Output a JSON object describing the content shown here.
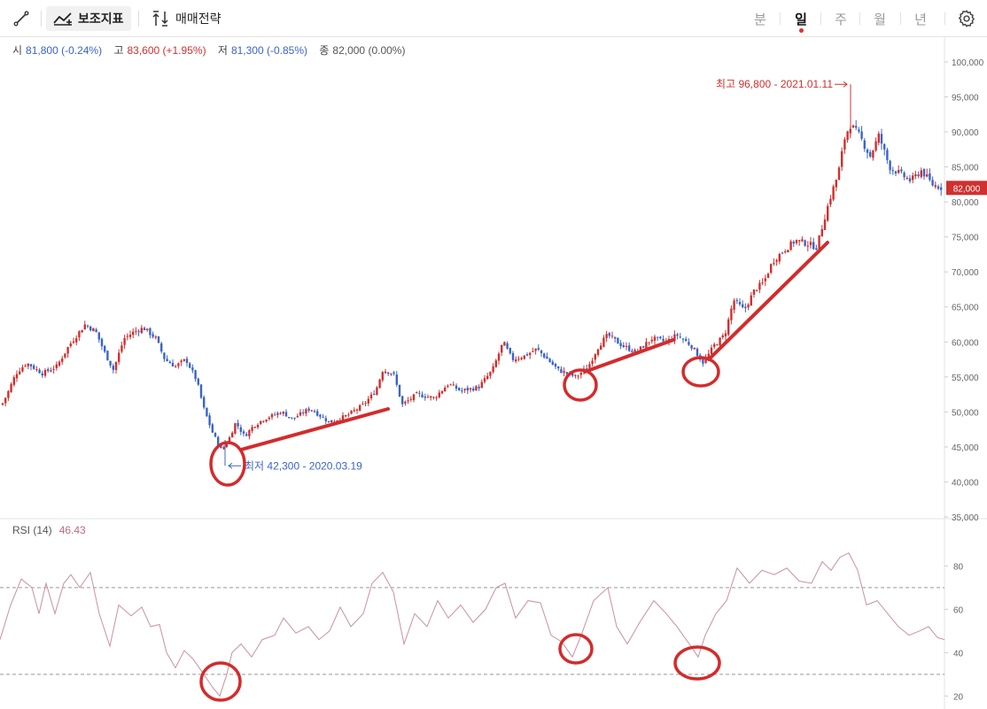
{
  "toolbar": {
    "draw_icon": "line-draw-icon",
    "indicator_label": "보조지표",
    "strategy_label": "매매전략",
    "periods": [
      "분",
      "일",
      "주",
      "월",
      "년"
    ],
    "active_period": "일",
    "settings_icon": "gear-icon"
  },
  "ohlc": {
    "open_label": "시",
    "open_value": "81,800 (-0.24%)",
    "high_label": "고",
    "high_value": "83,600 (+1.95%)",
    "low_label": "저",
    "low_value": "81,300 (-0.85%)",
    "close_label": "종",
    "close_value": "82,000 (0.00%)"
  },
  "rsi": {
    "label": "RSI (14)",
    "value": "46.43"
  },
  "colors": {
    "up": "#d0302f",
    "down": "#3a64c9",
    "rsi_line": "#c9909f",
    "annotation": "#d42b2b"
  },
  "chart_data": [
    {
      "type": "candlestick",
      "title": "",
      "ylim": [
        35000,
        101000
      ],
      "y_ticks": [
        "35,000",
        "40,000",
        "45,000",
        "50,000",
        "55,000",
        "60,000",
        "65,000",
        "70,000",
        "75,000",
        "80,000",
        "85,000",
        "90,000",
        "95,000",
        "100,000"
      ],
      "y_tick_values": [
        35000,
        40000,
        45000,
        50000,
        55000,
        60000,
        65000,
        70000,
        75000,
        80000,
        85000,
        90000,
        95000,
        100000
      ],
      "close_path": [
        [
          0,
          50500
        ],
        [
          8,
          52500
        ],
        [
          18,
          55500
        ],
        [
          30,
          57000
        ],
        [
          48,
          55500
        ],
        [
          64,
          56500
        ],
        [
          78,
          59500
        ],
        [
          96,
          62500
        ],
        [
          108,
          61500
        ],
        [
          118,
          58500
        ],
        [
          128,
          56000
        ],
        [
          140,
          60500
        ],
        [
          152,
          61500
        ],
        [
          162,
          62000
        ],
        [
          176,
          60500
        ],
        [
          186,
          57500
        ],
        [
          198,
          56500
        ],
        [
          210,
          57500
        ],
        [
          222,
          54500
        ],
        [
          230,
          50500
        ],
        [
          240,
          47000
        ],
        [
          250,
          44500
        ],
        [
          258,
          46000
        ],
        [
          266,
          48500
        ],
        [
          276,
          46500
        ],
        [
          286,
          48000
        ],
        [
          298,
          49000
        ],
        [
          318,
          50000
        ],
        [
          330,
          49000
        ],
        [
          350,
          50500
        ],
        [
          372,
          48500
        ],
        [
          392,
          49500
        ],
        [
          410,
          51000
        ],
        [
          424,
          53000
        ],
        [
          432,
          56000
        ],
        [
          444,
          55500
        ],
        [
          454,
          51000
        ],
        [
          470,
          52500
        ],
        [
          490,
          52000
        ],
        [
          506,
          54000
        ],
        [
          520,
          53000
        ],
        [
          540,
          53500
        ],
        [
          556,
          56000
        ],
        [
          568,
          60000
        ],
        [
          578,
          57500
        ],
        [
          592,
          58000
        ],
        [
          606,
          59000
        ],
        [
          618,
          57500
        ],
        [
          630,
          56000
        ],
        [
          650,
          55000
        ],
        [
          664,
          56500
        ],
        [
          676,
          59500
        ],
        [
          686,
          61000
        ],
        [
          702,
          59500
        ],
        [
          718,
          58500
        ],
        [
          736,
          60500
        ],
        [
          752,
          60000
        ],
        [
          764,
          61000
        ],
        [
          780,
          59500
        ],
        [
          794,
          57000
        ],
        [
          806,
          59500
        ],
        [
          818,
          61000
        ],
        [
          828,
          66000
        ],
        [
          840,
          64500
        ],
        [
          852,
          67500
        ],
        [
          862,
          68500
        ],
        [
          872,
          71500
        ],
        [
          884,
          73000
        ],
        [
          898,
          74500
        ],
        [
          912,
          74000
        ],
        [
          922,
          73500
        ],
        [
          930,
          77500
        ],
        [
          938,
          81000
        ],
        [
          946,
          84000
        ],
        [
          954,
          89500
        ],
        [
          960,
          91000
        ],
        [
          970,
          89500
        ],
        [
          982,
          86500
        ],
        [
          992,
          89500
        ],
        [
          1004,
          85000
        ],
        [
          1016,
          84000
        ],
        [
          1028,
          83000
        ],
        [
          1040,
          84500
        ],
        [
          1052,
          82500
        ],
        [
          1064,
          82000
        ]
      ],
      "high_annotation": {
        "text": "최고 96,800 - 2021.01.11",
        "x": 960,
        "value": 96800
      },
      "low_annotation": {
        "text": "최저 42,300 - 2020.03.19",
        "x": 254,
        "value": 42300
      },
      "last_price_label": "82,000",
      "last_price_value": 82000
    },
    {
      "type": "line",
      "title": "RSI (14)",
      "ylim": [
        14,
        92
      ],
      "y_ticks": [
        "20",
        "40",
        "60",
        "80"
      ],
      "y_tick_values": [
        20,
        40,
        60,
        80
      ],
      "reference_lines": [
        70,
        30
      ],
      "series": [
        {
          "values": [
            [
              0,
              46
            ],
            [
              12,
              62
            ],
            [
              24,
              74
            ],
            [
              36,
              70
            ],
            [
              44,
              58
            ],
            [
              52,
              72
            ],
            [
              62,
              58
            ],
            [
              72,
              72
            ],
            [
              80,
              76
            ],
            [
              90,
              70
            ],
            [
              102,
              77
            ],
            [
              112,
              58
            ],
            [
              124,
              43
            ],
            [
              134,
              62
            ],
            [
              148,
              57
            ],
            [
              160,
              61
            ],
            [
              170,
              52
            ],
            [
              180,
              53
            ],
            [
              188,
              40
            ],
            [
              198,
              33
            ],
            [
              208,
              41
            ],
            [
              218,
              37
            ],
            [
              230,
              30
            ],
            [
              240,
              24
            ],
            [
              248,
              20
            ],
            [
              256,
              30
            ],
            [
              262,
              40
            ],
            [
              272,
              44
            ],
            [
              284,
              38
            ],
            [
              296,
              46
            ],
            [
              310,
              48
            ],
            [
              320,
              56
            ],
            [
              334,
              49
            ],
            [
              348,
              52
            ],
            [
              360,
              46
            ],
            [
              372,
              50
            ],
            [
              384,
              61
            ],
            [
              396,
              52
            ],
            [
              410,
              58
            ],
            [
              420,
              72
            ],
            [
              432,
              77
            ],
            [
              444,
              68
            ],
            [
              456,
              44
            ],
            [
              468,
              58
            ],
            [
              482,
              52
            ],
            [
              494,
              64
            ],
            [
              506,
              56
            ],
            [
              520,
              62
            ],
            [
              534,
              54
            ],
            [
              548,
              60
            ],
            [
              560,
              70
            ],
            [
              570,
              72
            ],
            [
              582,
              56
            ],
            [
              596,
              64
            ],
            [
              610,
              63
            ],
            [
              622,
              48
            ],
            [
              634,
              45
            ],
            [
              646,
              38
            ],
            [
              656,
              48
            ],
            [
              670,
              64
            ],
            [
              686,
              70
            ],
            [
              696,
              52
            ],
            [
              708,
              44
            ],
            [
              722,
              54
            ],
            [
              738,
              64
            ],
            [
              752,
              58
            ],
            [
              764,
              52
            ],
            [
              778,
              44
            ],
            [
              788,
              38
            ],
            [
              796,
              48
            ],
            [
              808,
              58
            ],
            [
              820,
              64
            ],
            [
              832,
              79
            ],
            [
              846,
              72
            ],
            [
              860,
              78
            ],
            [
              874,
              76
            ],
            [
              888,
              79
            ],
            [
              902,
              73
            ],
            [
              916,
              72
            ],
            [
              928,
              82
            ],
            [
              938,
              78
            ],
            [
              948,
              84
            ],
            [
              958,
              86
            ],
            [
              968,
              78
            ],
            [
              978,
              62
            ],
            [
              990,
              64
            ],
            [
              1002,
              58
            ],
            [
              1014,
              52
            ],
            [
              1026,
              48
            ],
            [
              1038,
              50
            ],
            [
              1048,
              52
            ],
            [
              1058,
              47
            ],
            [
              1066,
              46
            ]
          ]
        }
      ]
    }
  ]
}
